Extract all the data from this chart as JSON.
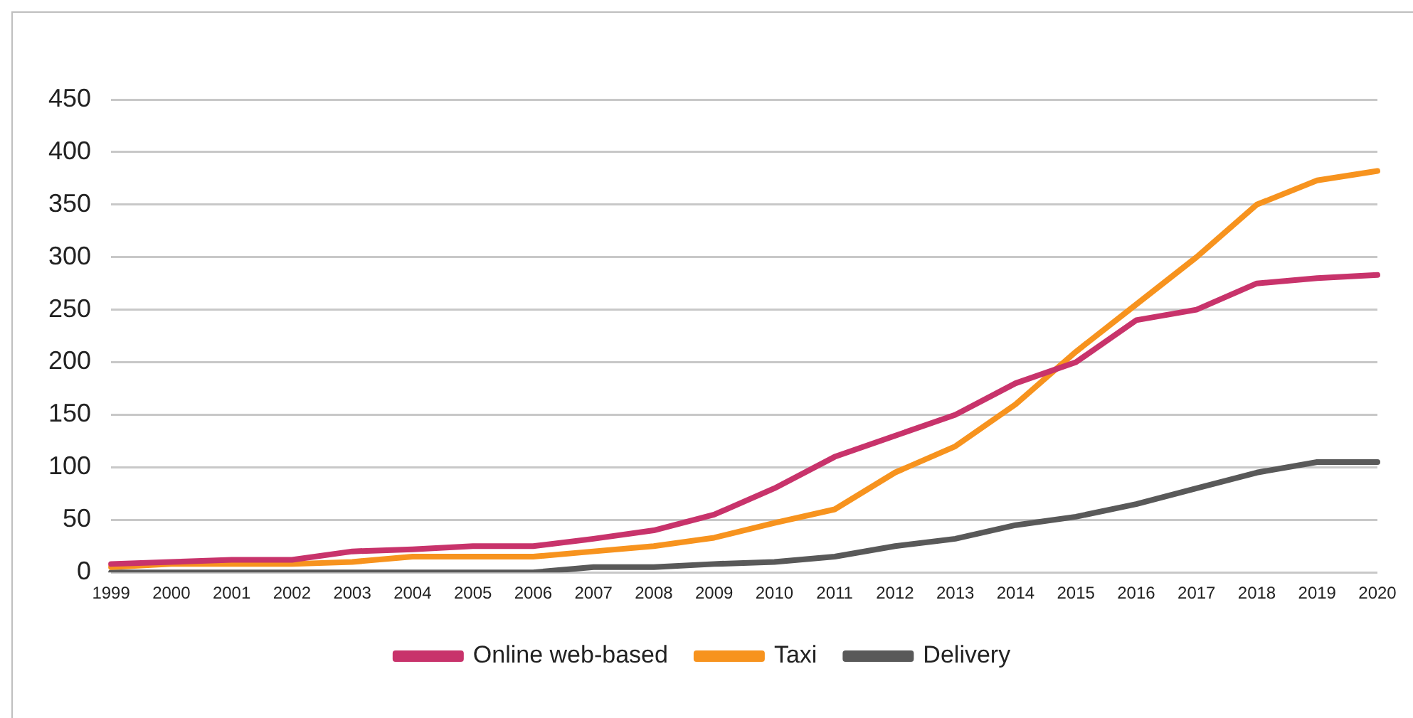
{
  "chart_data": {
    "type": "line",
    "categories": [
      "1999",
      "2000",
      "2001",
      "2002",
      "2003",
      "2004",
      "2005",
      "2006",
      "2007",
      "2008",
      "2009",
      "2010",
      "2011",
      "2012",
      "2013",
      "2014",
      "2015",
      "2016",
      "2017",
      "2018",
      "2019",
      "2020"
    ],
    "series": [
      {
        "name": "Online web-based",
        "color": "#c8336b",
        "values": [
          8,
          10,
          12,
          12,
          20,
          22,
          25,
          25,
          32,
          40,
          55,
          80,
          110,
          130,
          150,
          180,
          200,
          240,
          250,
          275,
          280,
          283
        ]
      },
      {
        "name": "Taxi",
        "color": "#f7931e",
        "values": [
          5,
          8,
          8,
          8,
          10,
          15,
          15,
          15,
          20,
          25,
          33,
          47,
          60,
          95,
          120,
          160,
          210,
          255,
          300,
          350,
          373,
          382
        ]
      },
      {
        "name": "Delivery",
        "color": "#595959",
        "values": [
          0,
          0,
          0,
          0,
          0,
          0,
          0,
          0,
          5,
          5,
          8,
          10,
          15,
          25,
          32,
          45,
          53,
          65,
          80,
          95,
          105,
          105
        ]
      }
    ],
    "ylim": [
      0,
      450
    ],
    "yticks": [
      0,
      50,
      100,
      150,
      200,
      250,
      300,
      350,
      400,
      450
    ],
    "grid": "y",
    "legend": "bottom",
    "marker": "none",
    "line_style": "solid"
  }
}
